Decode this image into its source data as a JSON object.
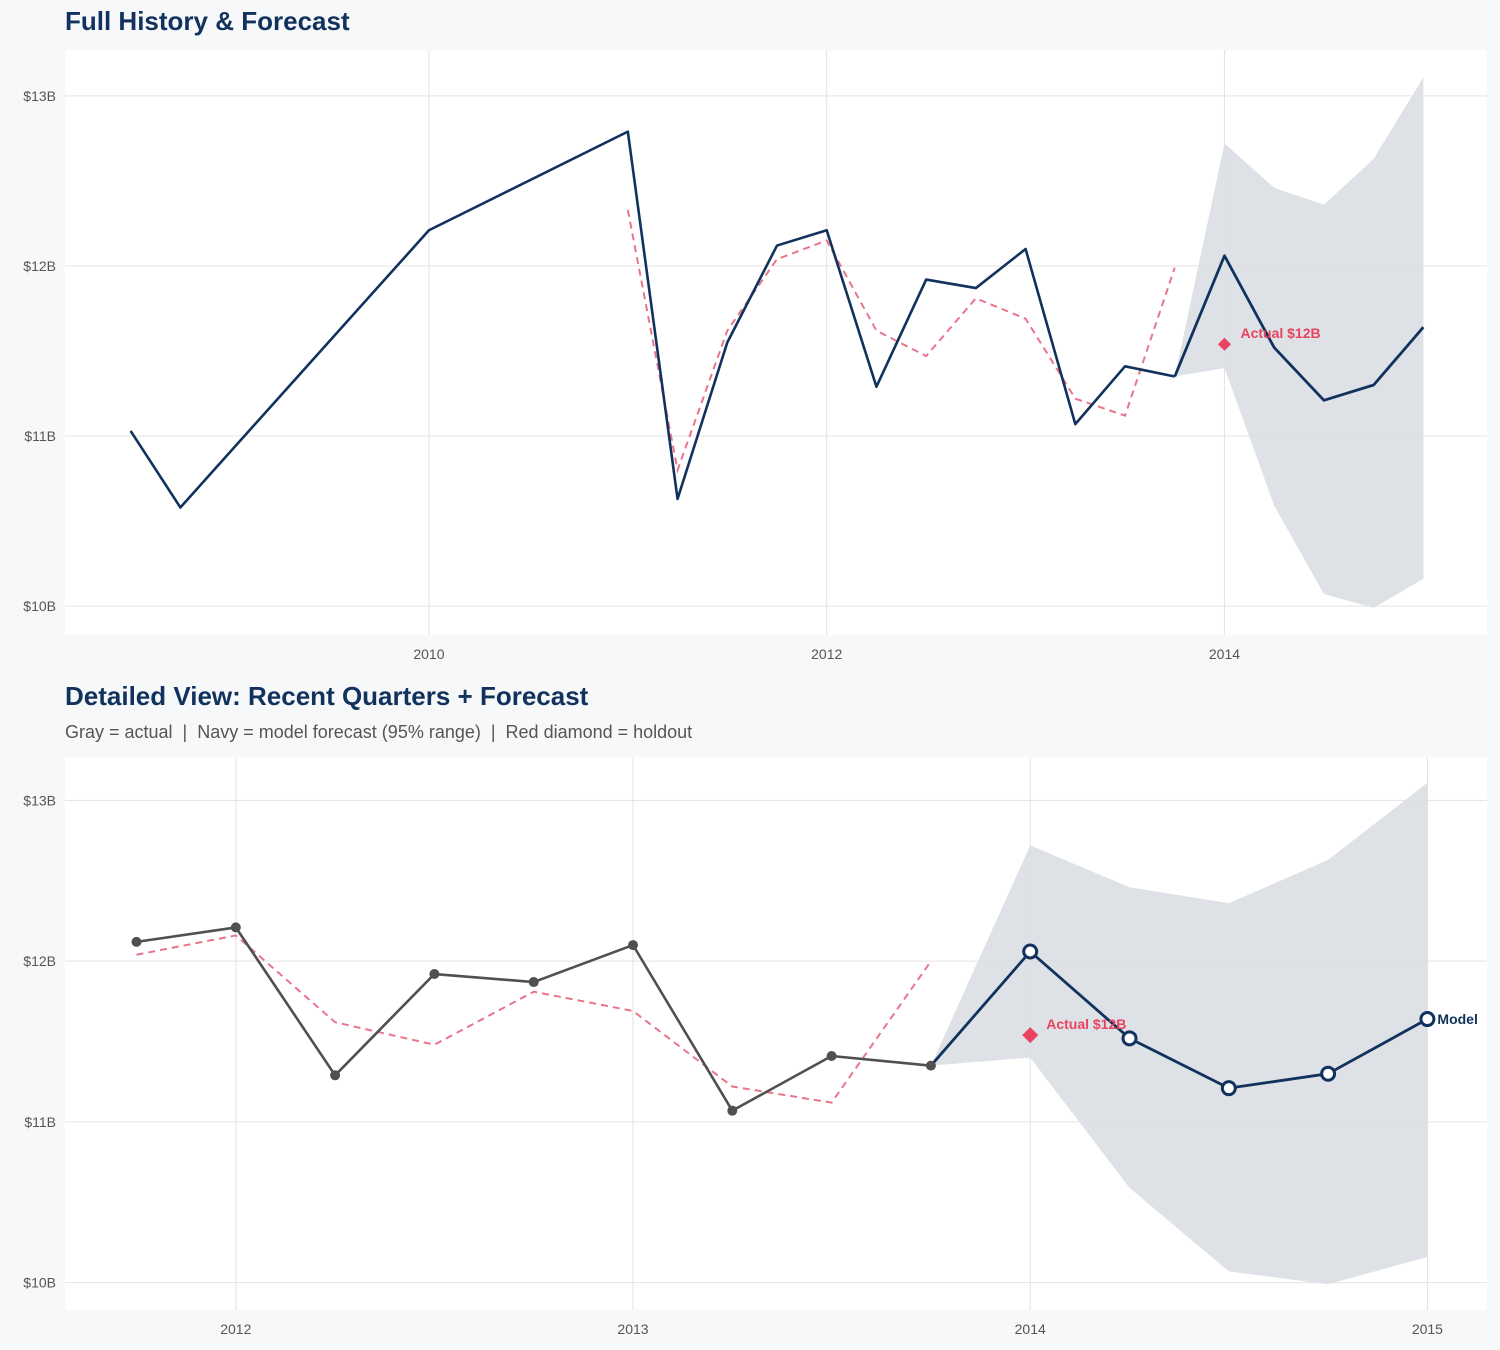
{
  "chart_data": [
    {
      "type": "line",
      "title": "Full History & Forecast",
      "subtitle": "",
      "xlim": [
        2008.17,
        2015.32
      ],
      "ylim": [
        9.83,
        13.27
      ],
      "x_ticks": [
        {
          "value": 2010,
          "label": "2010"
        },
        {
          "value": 2012,
          "label": "2012"
        },
        {
          "value": 2014,
          "label": "2014"
        }
      ],
      "y_ticks": [
        {
          "value": 10,
          "label": "$10B"
        },
        {
          "value": 11,
          "label": "$11B"
        },
        {
          "value": 12,
          "label": "$12B"
        },
        {
          "value": 13,
          "label": "$13B"
        }
      ],
      "grid": true,
      "colors": {
        "actual": "#12325e",
        "forecast": "#12325e",
        "fitted": "#e8768a",
        "band": "#dcdfe5",
        "holdout": "#e8445f"
      },
      "actual": {
        "x": [
          2008.5,
          2008.75,
          2010.0,
          2011.0,
          2011.25,
          2011.5,
          2011.75,
          2012.0,
          2012.25,
          2012.5,
          2012.75,
          2013.0,
          2013.25,
          2013.5,
          2013.75
        ],
        "y": [
          11.03,
          10.58,
          12.21,
          12.79,
          10.63,
          11.55,
          12.12,
          12.21,
          11.29,
          11.92,
          11.87,
          12.1,
          11.07,
          11.41,
          11.35
        ]
      },
      "forecast": {
        "x": [
          2013.75,
          2014.0,
          2014.25,
          2014.5,
          2014.75,
          2015.0
        ],
        "y": [
          11.35,
          12.06,
          11.52,
          11.21,
          11.3,
          11.64
        ]
      },
      "band": {
        "x": [
          2013.75,
          2014.0,
          2014.25,
          2014.5,
          2014.75,
          2015.0
        ],
        "lower": [
          11.35,
          11.4,
          10.59,
          10.07,
          9.99,
          10.16
        ],
        "upper": [
          11.35,
          12.72,
          12.46,
          12.36,
          12.63,
          13.11
        ]
      },
      "fitted": {
        "x": [
          2011.0,
          2011.25,
          2011.5,
          2011.75,
          2012.0,
          2012.25,
          2012.5,
          2012.75,
          2013.0,
          2013.25,
          2013.5,
          2013.75
        ],
        "y": [
          12.33,
          10.8,
          11.62,
          12.04,
          12.15,
          11.62,
          11.47,
          11.81,
          11.69,
          11.22,
          11.12,
          11.99
        ]
      },
      "holdout": {
        "x": 2014.0,
        "y": 11.54,
        "label": "Actual $12B"
      },
      "markers": false,
      "end_label": ""
    },
    {
      "type": "line",
      "title": "Detailed View: Recent Quarters + Forecast",
      "subtitle": "Gray = actual  |  Navy = model forecast (95% range)  |  Red diamond = holdout",
      "xlim": [
        2011.57,
        2015.15
      ],
      "ylim": [
        9.83,
        13.27
      ],
      "x_ticks": [
        {
          "value": 2012,
          "label": "2012"
        },
        {
          "value": 2013,
          "label": "2013"
        },
        {
          "value": 2014,
          "label": "2014"
        },
        {
          "value": 2015,
          "label": "2015"
        }
      ],
      "y_ticks": [
        {
          "value": 10,
          "label": "$10B"
        },
        {
          "value": 11,
          "label": "$11B"
        },
        {
          "value": 12,
          "label": "$12B"
        },
        {
          "value": 13,
          "label": "$13B"
        }
      ],
      "grid": true,
      "colors": {
        "actual": "#505050",
        "forecast": "#12325e",
        "fitted": "#e8768a",
        "band": "#dcdfe5",
        "holdout": "#e8445f"
      },
      "actual": {
        "x": [
          2011.75,
          2012.0,
          2012.25,
          2012.5,
          2012.75,
          2013.0,
          2013.25,
          2013.5,
          2013.75
        ],
        "y": [
          12.12,
          12.21,
          11.29,
          11.92,
          11.87,
          12.1,
          11.07,
          11.41,
          11.35
        ]
      },
      "forecast": {
        "x": [
          2013.75,
          2014.0,
          2014.25,
          2014.5,
          2014.75,
          2015.0
        ],
        "y": [
          11.35,
          12.06,
          11.52,
          11.21,
          11.3,
          11.64
        ]
      },
      "band": {
        "x": [
          2013.75,
          2014.0,
          2014.25,
          2014.5,
          2014.75,
          2015.0
        ],
        "lower": [
          11.35,
          11.4,
          10.59,
          10.07,
          9.99,
          10.16
        ],
        "upper": [
          11.35,
          12.72,
          12.46,
          12.36,
          12.63,
          13.11
        ]
      },
      "fitted": {
        "x": [
          2011.75,
          2012.0,
          2012.25,
          2012.5,
          2012.75,
          2013.0,
          2013.25,
          2013.5,
          2013.75
        ],
        "y": [
          12.04,
          12.16,
          11.62,
          11.48,
          11.81,
          11.69,
          11.22,
          11.12,
          12.0
        ]
      },
      "holdout": {
        "x": 2014.0,
        "y": 11.54,
        "label": "Actual $12B"
      },
      "markers": true,
      "end_label": "Model"
    }
  ]
}
